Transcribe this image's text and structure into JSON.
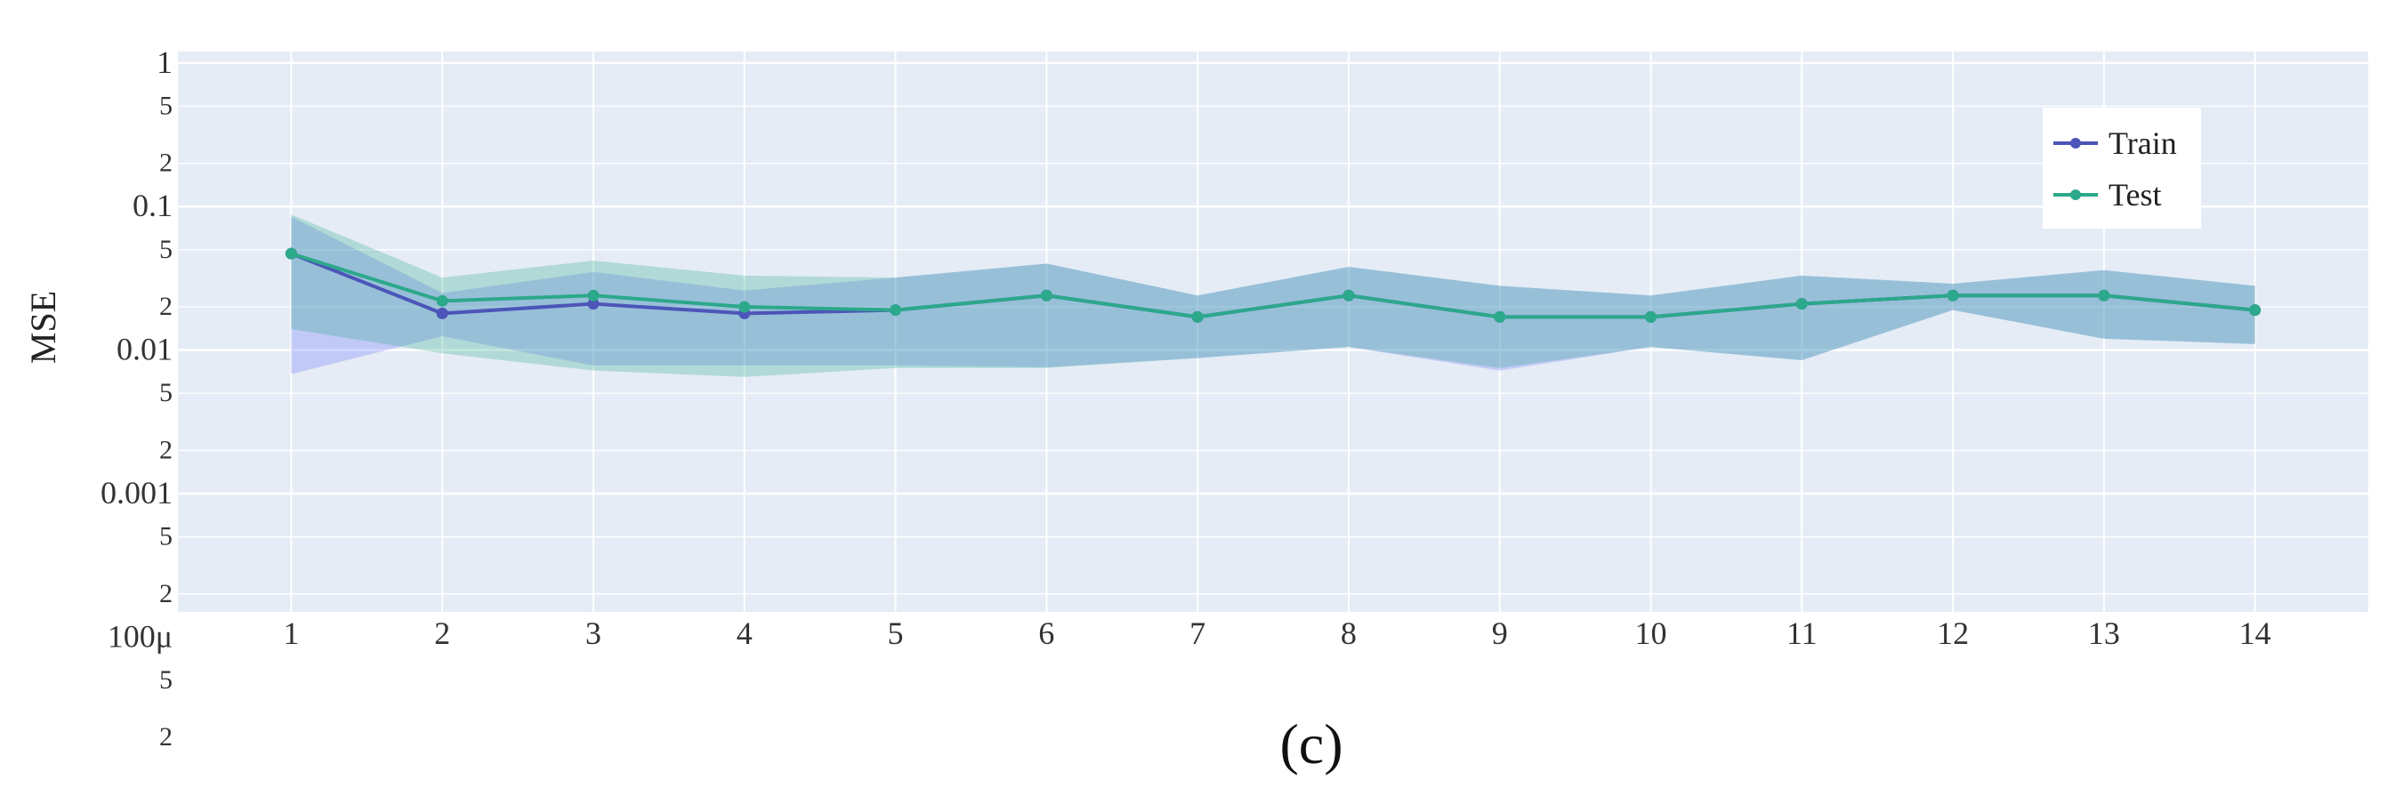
{
  "caption": "(c)",
  "chart_data": {
    "type": "line",
    "y_scale": "log",
    "ylabel": "MSE",
    "xlabel": "",
    "x": [
      1,
      2,
      3,
      4,
      5,
      6,
      7,
      8,
      9,
      10,
      11,
      12,
      13,
      14
    ],
    "ylim": [
      0.00015,
      1.2
    ],
    "xlim": [
      0.25,
      14.75
    ],
    "grid": true,
    "legend_position": "top-right",
    "major_tick_labels": [
      {
        "value": 1,
        "label": "1"
      },
      {
        "value": 0.1,
        "label": "0.1"
      },
      {
        "value": 0.01,
        "label": "0.01"
      },
      {
        "value": 0.001,
        "label": "0.001"
      },
      {
        "value": 0.0001,
        "label": "100μ"
      }
    ],
    "minor_tick_labels": [
      {
        "value": 0.5,
        "label": "5"
      },
      {
        "value": 0.2,
        "label": "2"
      },
      {
        "value": 0.05,
        "label": "5"
      },
      {
        "value": 0.02,
        "label": "2"
      },
      {
        "value": 0.005,
        "label": "5"
      },
      {
        "value": 0.002,
        "label": "2"
      },
      {
        "value": 0.0005,
        "label": "5"
      },
      {
        "value": 0.0002,
        "label": "2"
      },
      {
        "value": 5e-05,
        "label": "5"
      },
      {
        "value": 2e-05,
        "label": "2"
      }
    ],
    "series": [
      {
        "name": "Train",
        "color": "#636efa",
        "line_color": "#4c55b8",
        "values": [
          0.047,
          0.018,
          0.021,
          0.018,
          0.019,
          0.024,
          0.017,
          0.024,
          0.017,
          0.017,
          0.021,
          0.024,
          0.024,
          0.019
        ],
        "upper": [
          0.085,
          0.025,
          0.035,
          0.026,
          0.032,
          0.04,
          0.024,
          0.038,
          0.028,
          0.024,
          0.033,
          0.029,
          0.036,
          0.028
        ],
        "lower": [
          0.0068,
          0.0125,
          0.0078,
          0.0078,
          0.0078,
          0.0076,
          0.0088,
          0.0105,
          0.0072,
          0.0105,
          0.0085,
          0.019,
          0.012,
          0.011
        ]
      },
      {
        "name": "Test",
        "color": "#2ca88a",
        "line_color": "#2ca88a",
        "values": [
          0.047,
          0.022,
          0.024,
          0.02,
          0.019,
          0.024,
          0.017,
          0.024,
          0.017,
          0.017,
          0.021,
          0.024,
          0.024,
          0.019
        ],
        "upper": [
          0.088,
          0.032,
          0.042,
          0.033,
          0.032,
          0.04,
          0.024,
          0.038,
          0.028,
          0.024,
          0.033,
          0.029,
          0.036,
          0.028
        ],
        "lower": [
          0.014,
          0.0095,
          0.0072,
          0.0065,
          0.0075,
          0.0075,
          0.0088,
          0.0105,
          0.0075,
          0.0105,
          0.0085,
          0.019,
          0.012,
          0.011
        ]
      }
    ]
  }
}
